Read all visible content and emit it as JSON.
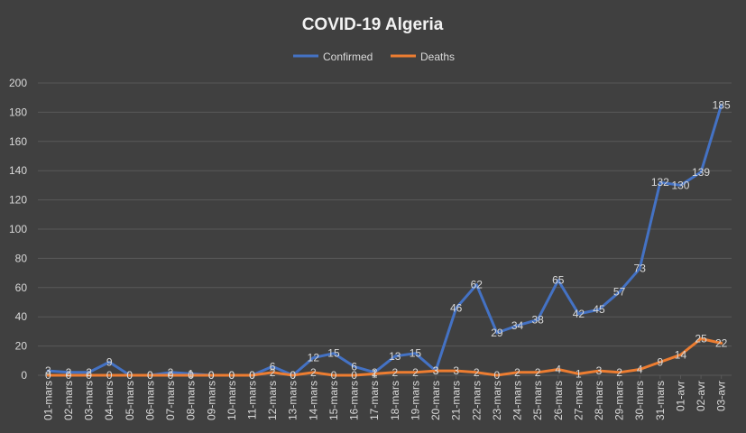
{
  "chart_data": {
    "type": "line",
    "title": "COVID-19 Algeria",
    "xlabel": "",
    "ylabel": "",
    "ylim": [
      0,
      200
    ],
    "yticks": [
      0,
      20,
      40,
      60,
      80,
      100,
      120,
      140,
      160,
      180,
      200
    ],
    "grid": true,
    "legend_position": "top",
    "categories": [
      "01-mars",
      "02-mars",
      "03-mars",
      "04-mars",
      "05-mars",
      "06-mars",
      "07-mars",
      "08-mars",
      "09-mars",
      "10-mars",
      "11-mars",
      "12-mars",
      "13-mars",
      "14-mars",
      "15-mars",
      "16-mars",
      "17-mars",
      "18-mars",
      "19-mars",
      "20-mars",
      "21-mars",
      "22-mars",
      "23-mars",
      "24-mars",
      "25-mars",
      "26-mars",
      "27-mars",
      "28-mars",
      "29-mars",
      "30-mars",
      "31-mars",
      "01-avr",
      "02-avr",
      "03-avr"
    ],
    "series": [
      {
        "name": "Confirmed",
        "color": "#4472c4",
        "values": [
          3,
          2,
          2,
          9,
          0,
          0,
          2,
          1,
          0,
          0,
          0,
          6,
          0,
          12,
          15,
          6,
          2,
          13,
          15,
          3,
          46,
          62,
          29,
          34,
          38,
          65,
          42,
          45,
          57,
          73,
          132,
          130,
          139,
          185
        ]
      },
      {
        "name": "Deaths",
        "color": "#ed7d31",
        "values": [
          0,
          0,
          0,
          0,
          0,
          0,
          0,
          0,
          0,
          0,
          0,
          2,
          0,
          2,
          0,
          0,
          1,
          2,
          2,
          3,
          3,
          2,
          0,
          2,
          2,
          4,
          1,
          3,
          2,
          4,
          9,
          14,
          25,
          22
        ]
      }
    ]
  }
}
